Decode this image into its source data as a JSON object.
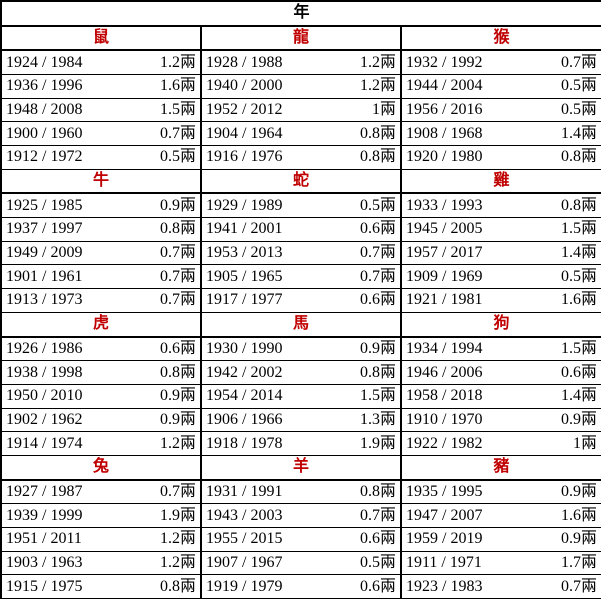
{
  "title": "年",
  "sections": [
    {
      "columns": [
        {
          "animal": "鼠",
          "rows": [
            [
              "1924 / 1984",
              "1.2兩"
            ],
            [
              "1936 / 1996",
              "1.6兩"
            ],
            [
              "1948 / 2008",
              "1.5兩"
            ],
            [
              "1900 / 1960",
              "0.7兩"
            ],
            [
              "1912 / 1972",
              "0.5兩"
            ]
          ]
        },
        {
          "animal": "龍",
          "rows": [
            [
              "1928 / 1988",
              "1.2兩"
            ],
            [
              "1940 / 2000",
              "1.2兩"
            ],
            [
              "1952 / 2012",
              "1兩"
            ],
            [
              "1904 / 1964",
              "0.8兩"
            ],
            [
              "1916 / 1976",
              "0.8兩"
            ]
          ]
        },
        {
          "animal": "猴",
          "rows": [
            [
              "1932 / 1992",
              "0.7兩"
            ],
            [
              "1944 / 2004",
              "0.5兩"
            ],
            [
              "1956 / 2016",
              "0.5兩"
            ],
            [
              "1908 / 1968",
              "1.4兩"
            ],
            [
              "1920 / 1980",
              "0.8兩"
            ]
          ]
        }
      ]
    },
    {
      "columns": [
        {
          "animal": "牛",
          "rows": [
            [
              "1925 / 1985",
              "0.9兩"
            ],
            [
              "1937 / 1997",
              "0.8兩"
            ],
            [
              "1949 / 2009",
              "0.7兩"
            ],
            [
              "1901 / 1961",
              "0.7兩"
            ],
            [
              "1913 / 1973",
              "0.7兩"
            ]
          ]
        },
        {
          "animal": "蛇",
          "rows": [
            [
              "1929 / 1989",
              "0.5兩"
            ],
            [
              "1941 / 2001",
              "0.6兩"
            ],
            [
              "1953 / 2013",
              "0.7兩"
            ],
            [
              "1905 / 1965",
              "0.7兩"
            ],
            [
              "1917 / 1977",
              "0.6兩"
            ]
          ]
        },
        {
          "animal": "雞",
          "rows": [
            [
              "1933 / 1993",
              "0.8兩"
            ],
            [
              "1945 / 2005",
              "1.5兩"
            ],
            [
              "1957 / 2017",
              "1.4兩"
            ],
            [
              "1909 / 1969",
              "0.5兩"
            ],
            [
              "1921 / 1981",
              "1.6兩"
            ]
          ]
        }
      ]
    },
    {
      "columns": [
        {
          "animal": "虎",
          "rows": [
            [
              "1926 / 1986",
              "0.6兩"
            ],
            [
              "1938 / 1998",
              "0.8兩"
            ],
            [
              "1950 / 2010",
              "0.9兩"
            ],
            [
              "1902 / 1962",
              "0.9兩"
            ],
            [
              "1914 / 1974",
              "1.2兩"
            ]
          ]
        },
        {
          "animal": "馬",
          "rows": [
            [
              "1930 / 1990",
              "0.9兩"
            ],
            [
              "1942 / 2002",
              "0.8兩"
            ],
            [
              "1954 / 2014",
              "1.5兩"
            ],
            [
              "1906 / 1966",
              "1.3兩"
            ],
            [
              "1918 / 1978",
              "1.9兩"
            ]
          ]
        },
        {
          "animal": "狗",
          "rows": [
            [
              "1934 / 1994",
              "1.5兩"
            ],
            [
              "1946 / 2006",
              "0.6兩"
            ],
            [
              "1958 / 2018",
              "1.4兩"
            ],
            [
              "1910 / 1970",
              "0.9兩"
            ],
            [
              "1922 / 1982",
              "1兩"
            ]
          ]
        }
      ]
    },
    {
      "columns": [
        {
          "animal": "兔",
          "rows": [
            [
              "1927 / 1987",
              "0.7兩"
            ],
            [
              "1939 / 1999",
              "1.9兩"
            ],
            [
              "1951 / 2011",
              "1.2兩"
            ],
            [
              "1903 / 1963",
              "1.2兩"
            ],
            [
              "1915 / 1975",
              "0.8兩"
            ]
          ]
        },
        {
          "animal": "羊",
          "rows": [
            [
              "1931 / 1991",
              "0.8兩"
            ],
            [
              "1943 / 2003",
              "0.7兩"
            ],
            [
              "1955 / 2015",
              "0.6兩"
            ],
            [
              "1907 / 1967",
              "0.5兩"
            ],
            [
              "1919 / 1979",
              "0.6兩"
            ]
          ]
        },
        {
          "animal": "豬",
          "rows": [
            [
              "1935 / 1995",
              "0.9兩"
            ],
            [
              "1947 / 2007",
              "1.6兩"
            ],
            [
              "1959 / 2019",
              "0.9兩"
            ],
            [
              "1911 / 1971",
              "1.7兩"
            ],
            [
              "1923 / 1983",
              "0.7兩"
            ]
          ]
        }
      ]
    }
  ]
}
